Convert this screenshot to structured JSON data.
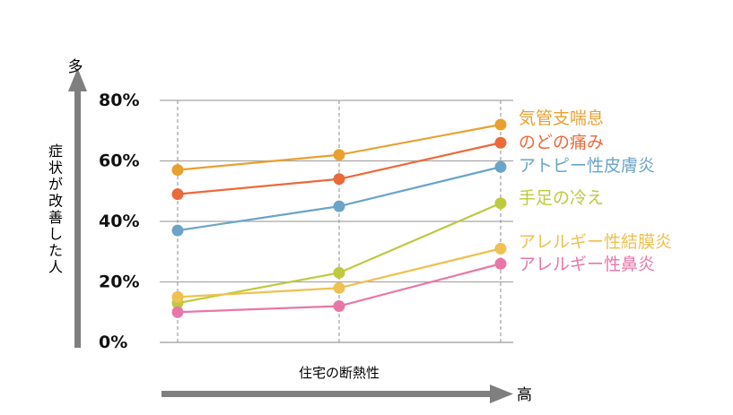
{
  "chart_data": {
    "type": "line",
    "x": [
      "",
      "",
      ""
    ],
    "ylim": [
      0,
      80
    ],
    "yticks": [
      {
        "value": 0,
        "label": "0%"
      },
      {
        "value": 20,
        "label": "20%"
      },
      {
        "value": 40,
        "label": "40%"
      },
      {
        "value": 60,
        "label": "60%"
      },
      {
        "value": 80,
        "label": "80%"
      }
    ],
    "xlabel": "住宅の断熱性",
    "ylabel": "症状が改善した人",
    "y_arrow_label": "多",
    "x_arrow_label": "高",
    "grid": true,
    "legend": "right",
    "series": [
      {
        "name": "気管支喘息",
        "color": "#E8A030",
        "values": [
          57,
          62,
          72
        ]
      },
      {
        "name": "のどの痛み",
        "color": "#EA6A3A",
        "values": [
          49,
          54,
          66
        ]
      },
      {
        "name": "アトピー性皮膚炎",
        "color": "#6BA4C8",
        "values": [
          37,
          45,
          58
        ]
      },
      {
        "name": "手足の冷え",
        "color": "#BFC93E",
        "values": [
          13,
          23,
          46
        ]
      },
      {
        "name": "アレルギー性結膜炎",
        "color": "#F0C050",
        "values": [
          15,
          18,
          31
        ]
      },
      {
        "name": "アレルギー性鼻炎",
        "color": "#E877A8",
        "values": [
          10,
          12,
          26
        ]
      }
    ]
  }
}
